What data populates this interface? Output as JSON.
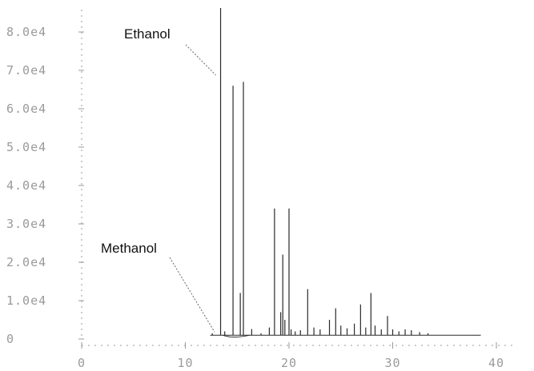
{
  "chart_data": {
    "type": "line",
    "title": "",
    "xlabel": "",
    "ylabel": "",
    "xlim": [
      0,
      40
    ],
    "ylim": [
      0,
      80000
    ],
    "x_ticks": [
      "0",
      "10",
      "20",
      "30",
      "40"
    ],
    "y_ticks": [
      "0",
      "1.0e4",
      "2.0e4",
      "3.0e4",
      "4.0e4",
      "5.0e4",
      "6.0e4",
      "7.0e4",
      "8.0e4"
    ],
    "grid": false,
    "legend": "none",
    "colors": {
      "trace": "#2a2a2a",
      "axis": "#9a9a9a",
      "annotation": "#111111"
    },
    "annotations": [
      {
        "text": "Ethanol",
        "x": 13.4,
        "y": 70000
      },
      {
        "text": "Methanol",
        "x": 12.2,
        "y": 1000
      }
    ],
    "series": [
      {
        "baseline": 1000,
        "peaks": [
          [
            12.6,
            1500
          ],
          [
            13.4,
            87000
          ],
          [
            13.8,
            2000
          ],
          [
            14.6,
            66000
          ],
          [
            15.3,
            12000
          ],
          [
            15.6,
            67000
          ],
          [
            16.4,
            2600
          ],
          [
            17.3,
            1500
          ],
          [
            18.1,
            3000
          ],
          [
            18.6,
            34000
          ],
          [
            19.2,
            7000
          ],
          [
            19.4,
            22000
          ],
          [
            19.6,
            5000
          ],
          [
            20.0,
            34000
          ],
          [
            20.2,
            2500
          ],
          [
            20.6,
            2000
          ],
          [
            21.1,
            2300
          ],
          [
            21.8,
            13000
          ],
          [
            22.4,
            3000
          ],
          [
            23.0,
            2500
          ],
          [
            23.9,
            5000
          ],
          [
            24.5,
            8000
          ],
          [
            25.0,
            3500
          ],
          [
            25.6,
            2800
          ],
          [
            26.3,
            4000
          ],
          [
            26.9,
            9000
          ],
          [
            27.4,
            3000
          ],
          [
            27.9,
            12000
          ],
          [
            28.3,
            3500
          ],
          [
            28.9,
            2500
          ],
          [
            29.5,
            6000
          ],
          [
            30.0,
            2500
          ],
          [
            30.6,
            2000
          ],
          [
            31.2,
            2500
          ],
          [
            31.8,
            2300
          ],
          [
            32.6,
            1800
          ],
          [
            33.4,
            1500
          ]
        ]
      }
    ]
  }
}
